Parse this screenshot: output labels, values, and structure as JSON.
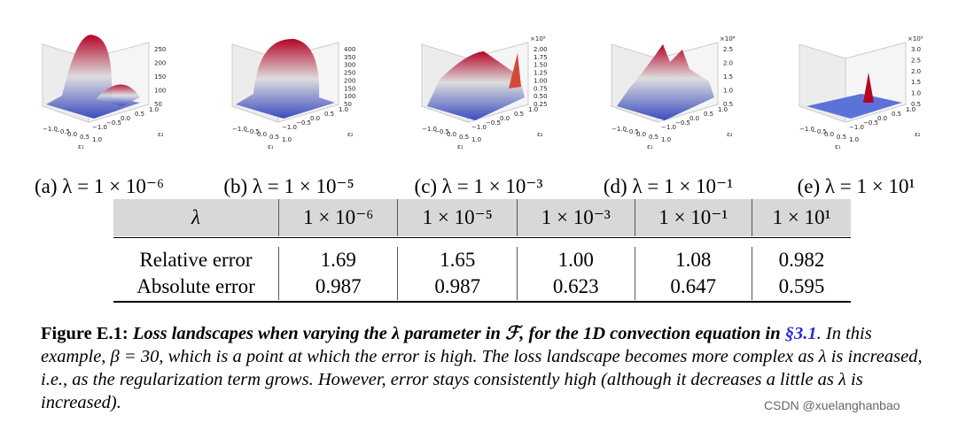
{
  "subfigures": [
    {
      "label": "(a) λ = 1 × 10⁻⁶",
      "ticks_z": [
        "250",
        "200",
        "150",
        "100",
        "50"
      ],
      "scale": ""
    },
    {
      "label": "(b) λ = 1 × 10⁻⁵",
      "ticks_z": [
        "400",
        "350",
        "300",
        "250",
        "200",
        "150",
        "100",
        "50"
      ],
      "scale": ""
    },
    {
      "label": "(c) λ = 1 × 10⁻³",
      "ticks_z": [
        "2.00",
        "1.75",
        "1.50",
        "1.25",
        "1.00",
        "0.75",
        "0.50",
        "0.25"
      ],
      "scale": "×10⁵"
    },
    {
      "label": "(d) λ = 1 × 10⁻¹",
      "ticks_z": [
        "2.5",
        "2.0",
        "1.5",
        "1.0",
        "0.5"
      ],
      "scale": "×10⁶"
    },
    {
      "label": "(e) λ = 1 × 10¹",
      "ticks_z": [
        "3.0",
        "2.5",
        "2.0",
        "1.5",
        "1.0",
        "0.5"
      ],
      "scale": "×10⁵"
    }
  ],
  "axis_ticks": {
    "x": [
      "−1.0",
      "−0.5",
      "0.0",
      "0.5",
      "1.0"
    ],
    "y": [
      "1.0",
      "0.5",
      "0.0",
      "−0.5",
      "−1.0"
    ],
    "xlabel": "ε₁",
    "ylabel": "ε₂"
  },
  "table": {
    "header": [
      "λ",
      "1 × 10⁻⁶",
      "1 × 10⁻⁵",
      "1 × 10⁻³",
      "1 × 10⁻¹",
      "1 × 10¹"
    ],
    "rows": [
      [
        "Relative error",
        "1.69",
        "1.65",
        "1.00",
        "1.08",
        "0.982"
      ],
      [
        "Absolute error",
        "0.987",
        "0.987",
        "0.623",
        "0.647",
        "0.595"
      ]
    ]
  },
  "caption": {
    "label": "Figure E.1:",
    "bold_part": "Loss landscapes when varying the λ parameter in ℱ, for the 1D convection equation in ",
    "link": "§3.1",
    "rest": ". In this example, β = 30, which is a point at which the error is high. The loss landscape becomes more complex as λ is increased, i.e., as the regularization term grows. However, error stays consistently high (although it decreases a little as λ is increased)."
  },
  "watermark": "CSDN @xuelanghanbao",
  "colors": {
    "surface_low": "#3b4cc0",
    "surface_high": "#b40426",
    "header_bg": "#d8d8d8",
    "link": "#2b2bcc"
  }
}
